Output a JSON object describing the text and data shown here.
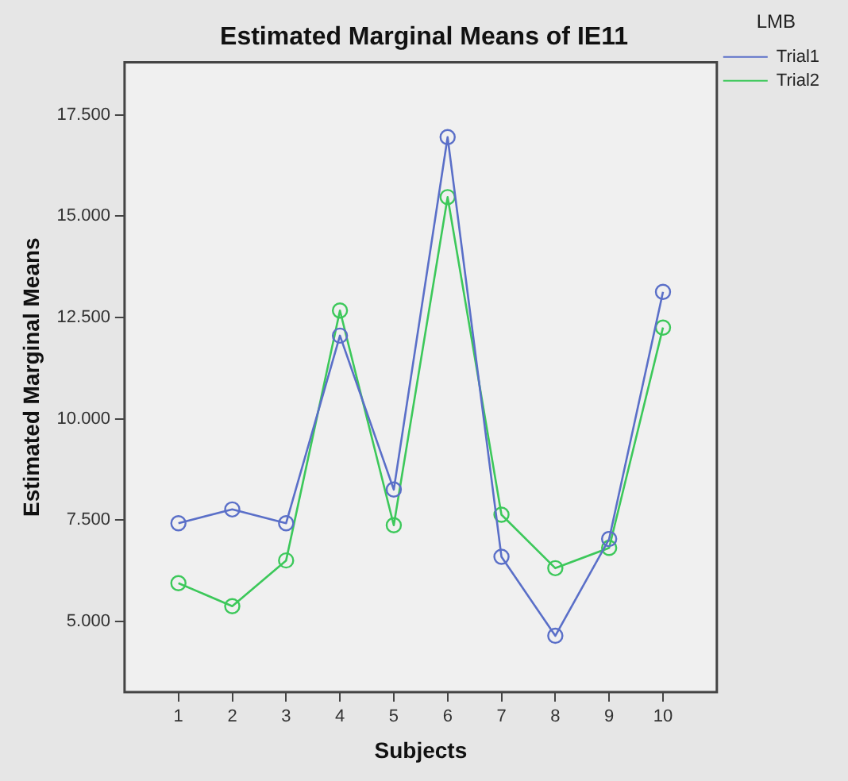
{
  "chart_data": {
    "type": "line",
    "title": "Estimated Marginal Means of IE11",
    "xlabel": "Subjects",
    "ylabel": "Estimated Marginal Means",
    "legend_title": "LMB",
    "legend": "top right",
    "marker": "circle",
    "line_style": "solid",
    "grid": false,
    "x": [
      1,
      2,
      3,
      4,
      5,
      6,
      7,
      8,
      9,
      10
    ],
    "xlim": [
      0,
      11
    ],
    "xticks": [
      1,
      2,
      3,
      4,
      5,
      6,
      7,
      8,
      9,
      10
    ],
    "ylim": [
      3.25,
      18.8
    ],
    "yticks": [
      {
        "value": 5,
        "label": "5.000"
      },
      {
        "value": 7.5,
        "label": "7.500"
      },
      {
        "value": 10,
        "label": "10.000"
      },
      {
        "value": 12.5,
        "label": "12.500"
      },
      {
        "value": 15,
        "label": "15.000"
      },
      {
        "value": 17.5,
        "label": "17.500"
      }
    ],
    "series": [
      {
        "name": "Trial1",
        "color": "#5a6fc8",
        "values": [
          7.42,
          7.76,
          7.42,
          12.05,
          8.25,
          16.95,
          6.59,
          4.64,
          7.03,
          13.13
        ]
      },
      {
        "name": "Trial2",
        "color": "#3cc85a",
        "values": [
          5.94,
          5.37,
          6.5,
          12.67,
          7.37,
          15.47,
          7.63,
          6.31,
          6.81,
          12.25
        ]
      }
    ]
  }
}
